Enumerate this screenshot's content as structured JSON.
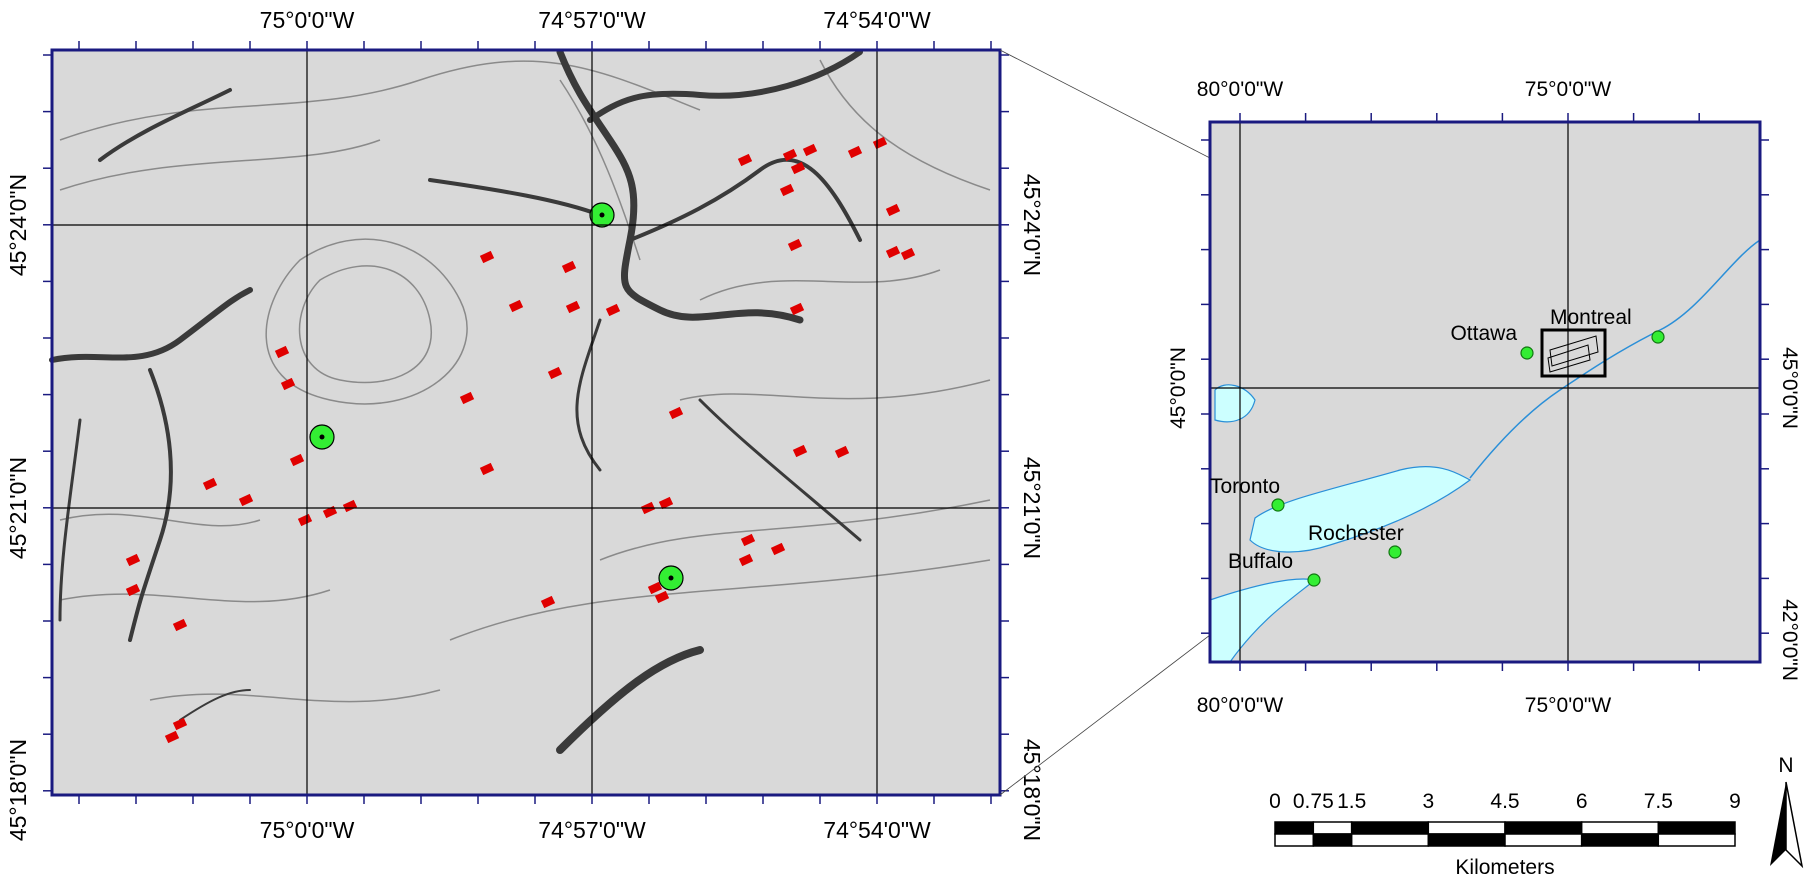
{
  "detail_map": {
    "top_labels": [
      "75°0'0\"W",
      "74°57'0\"W",
      "74°54'0\"W"
    ],
    "bottom_labels": [
      "75°0'0\"W",
      "74°57'0\"W",
      "74°54'0\"W"
    ],
    "left_labels": [
      "45°24'0\"N",
      "45°21'0\"N",
      "45°18'0\"N"
    ],
    "right_labels": [
      "45°24'0\"N",
      "45°21'0\"N",
      "45°18'0\"N"
    ]
  },
  "inset_map": {
    "top_labels": [
      "80°0'0\"W",
      "75°0'0\"W"
    ],
    "bottom_labels": [
      "80°0'0\"W",
      "75°0'0\"W"
    ],
    "left_labels": [
      "45°0'0\"N"
    ],
    "right_labels": [
      "45°0'0\"N",
      "42°0'0\"N"
    ],
    "cities": [
      "Ottawa",
      "Montreal",
      "Toronto",
      "Rochester",
      "Buffalo"
    ]
  },
  "scale_bar": {
    "labels": [
      "0",
      "0.75",
      "1.5",
      "3",
      "4.5",
      "6",
      "7.5",
      "9"
    ],
    "unit": "Kilometers"
  },
  "north_arrow": "N"
}
